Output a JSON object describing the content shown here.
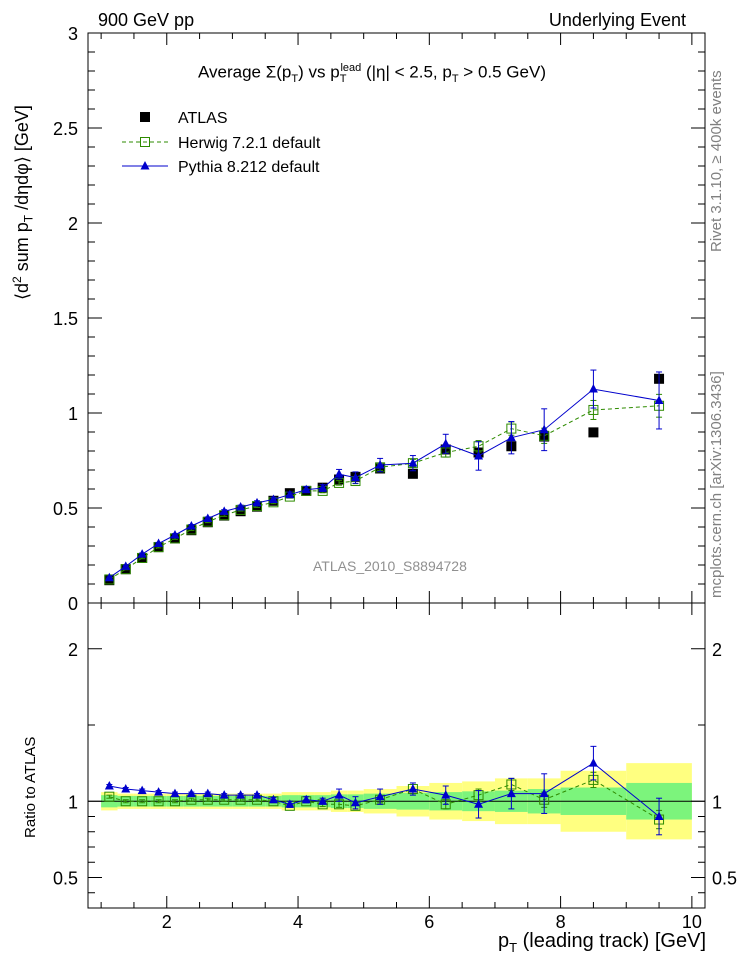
{
  "header": {
    "left": "900 GeV pp",
    "right": "Underlying Event"
  },
  "side_text": {
    "rivet": "Rivet 3.1.10, ≥ 400k events",
    "mcplots": "mcplots.cern.ch [arXiv:1306.3436]"
  },
  "watermark": "ATLAS_2010_S8894728",
  "colors": {
    "atlas": "#000000",
    "herwig": "#2e8b00",
    "pythia": "#0000cc",
    "band_inner": "#7cf47c",
    "band_outer": "#ffff80"
  },
  "chart_data": [
    {
      "type": "scatter",
      "panel": "main",
      "title": "Average Σ(pT) vs pT^lead (|η| < 2.5, pT > 0.5 GeV)",
      "title_parts": {
        "average": "Average",
        "sigma": "Σ(p",
        "t": "T",
        "close": ")",
        "vs": "vs p",
        "lead": "lead",
        "cuts_a": "(|η| < 2.5, p",
        "cuts_b": "> 0.5 GeV)"
      },
      "ylabel": "⟨d² sum pT /dηdφ⟩ [GeV]",
      "ylabel_parts": {
        "a": "⟨d",
        "sq": "2",
        "b": " sum p",
        "t": "T",
        "c": " /dηdφ⟩ [GeV]"
      },
      "xlim": [
        0.8,
        10.2
      ],
      "ylim": [
        0,
        3
      ],
      "yticks": [
        0,
        0.5,
        1,
        1.5,
        2,
        2.5,
        3
      ],
      "ytick_labels": [
        "0",
        "0.5",
        "1",
        "1.5",
        "2",
        "2.5",
        "3"
      ],
      "legend": {
        "position": "top-left",
        "entries": [
          "ATLAS",
          "Herwig 7.2.1 default",
          "Pythia 8.212 default"
        ]
      },
      "x": [
        1.125,
        1.375,
        1.625,
        1.875,
        2.125,
        2.375,
        2.625,
        2.875,
        3.125,
        3.375,
        3.625,
        3.875,
        4.125,
        4.375,
        4.625,
        4.875,
        5.25,
        5.75,
        6.25,
        6.75,
        7.25,
        7.75,
        8.5,
        9.5
      ],
      "series": [
        {
          "name": "ATLAS",
          "values": [
            0.12,
            0.178,
            0.237,
            0.294,
            0.34,
            0.383,
            0.425,
            0.46,
            0.483,
            0.507,
            0.538,
            0.578,
            0.59,
            0.607,
            0.65,
            0.664,
            0.708,
            0.68,
            0.808,
            0.792,
            0.825,
            0.876,
            0.898,
            1.18
          ]
        },
        {
          "name": "Herwig 7.2.1 default",
          "values": [
            0.124,
            0.178,
            0.237,
            0.294,
            0.34,
            0.387,
            0.428,
            0.462,
            0.49,
            0.51,
            0.53,
            0.56,
            0.59,
            0.59,
            0.632,
            0.642,
            0.714,
            0.736,
            0.792,
            0.825,
            0.918,
            0.88,
            1.016,
            1.038
          ],
          "errors": [
            0.003,
            0.003,
            0.004,
            0.004,
            0.005,
            0.005,
            0.005,
            0.006,
            0.006,
            0.007,
            0.007,
            0.008,
            0.009,
            0.01,
            0.012,
            0.014,
            0.016,
            0.02,
            0.024,
            0.03,
            0.035,
            0.04,
            0.05,
            0.06
          ]
        },
        {
          "name": "Pythia 8.212 default",
          "values": [
            0.133,
            0.193,
            0.257,
            0.313,
            0.358,
            0.405,
            0.445,
            0.482,
            0.505,
            0.527,
            0.545,
            0.57,
            0.597,
            0.605,
            0.678,
            0.66,
            0.726,
            0.736,
            0.838,
            0.774,
            0.87,
            0.912,
            1.126,
            1.066
          ],
          "errors": [
            0.004,
            0.005,
            0.006,
            0.006,
            0.007,
            0.008,
            0.008,
            0.009,
            0.01,
            0.011,
            0.012,
            0.014,
            0.016,
            0.018,
            0.025,
            0.03,
            0.035,
            0.04,
            0.05,
            0.075,
            0.085,
            0.11,
            0.1,
            0.15
          ]
        }
      ]
    },
    {
      "type": "scatter",
      "panel": "ratio",
      "ylabel": "Ratio to ATLAS",
      "xlabel": "pT (leading track) [GeV]",
      "xlabel_parts": {
        "a": "p",
        "t": "T",
        "b": " (leading track) [GeV]"
      },
      "xlim": [
        0.8,
        10.2
      ],
      "ylim": [
        0.3,
        2.3
      ],
      "xticks": [
        2,
        4,
        6,
        8,
        10
      ],
      "xtick_labels": [
        "2",
        "4",
        "6",
        "8",
        "10"
      ],
      "yticks": [
        0.5,
        1,
        2
      ],
      "ytick_labels": [
        "0.5",
        "1",
        "2"
      ],
      "x": [
        1.125,
        1.375,
        1.625,
        1.875,
        2.125,
        2.375,
        2.625,
        2.875,
        3.125,
        3.375,
        3.625,
        3.875,
        4.125,
        4.375,
        4.625,
        4.875,
        5.25,
        5.75,
        6.25,
        6.75,
        7.25,
        7.75,
        8.5,
        9.5
      ],
      "bins": [
        1.0,
        1.25,
        1.5,
        1.75,
        2.0,
        2.25,
        2.5,
        2.75,
        3.0,
        3.25,
        3.5,
        3.75,
        4.0,
        4.25,
        4.5,
        4.75,
        5.0,
        5.5,
        6.0,
        6.5,
        7.0,
        7.5,
        8.0,
        9.0,
        10.0
      ],
      "band_inner": [
        0.04,
        0.035,
        0.035,
        0.035,
        0.035,
        0.035,
        0.035,
        0.035,
        0.035,
        0.035,
        0.035,
        0.04,
        0.04,
        0.04,
        0.045,
        0.045,
        0.05,
        0.055,
        0.06,
        0.065,
        0.07,
        0.08,
        0.09,
        0.12
      ],
      "band_outer": [
        0.06,
        0.05,
        0.05,
        0.05,
        0.05,
        0.05,
        0.05,
        0.05,
        0.05,
        0.05,
        0.05,
        0.06,
        0.06,
        0.06,
        0.07,
        0.07,
        0.08,
        0.1,
        0.12,
        0.13,
        0.15,
        0.15,
        0.2,
        0.25
      ],
      "series": [
        {
          "name": "Herwig 7.2.1 default",
          "values": [
            1.03,
            1.0,
            1.0,
            1.0,
            1.0,
            1.01,
            1.01,
            1.01,
            1.01,
            1.01,
            1.0,
            0.97,
            1.0,
            0.98,
            0.98,
            0.97,
            1.01,
            1.08,
            0.98,
            1.04,
            1.11,
            1.01,
            1.14,
            0.88
          ],
          "errors": [
            0.01,
            0.01,
            0.01,
            0.01,
            0.01,
            0.01,
            0.01,
            0.01,
            0.01,
            0.01,
            0.01,
            0.01,
            0.01,
            0.015,
            0.02,
            0.02,
            0.02,
            0.03,
            0.03,
            0.04,
            0.04,
            0.05,
            0.05,
            0.06
          ]
        },
        {
          "name": "Pythia 8.212 default",
          "values": [
            1.1,
            1.08,
            1.07,
            1.06,
            1.05,
            1.05,
            1.05,
            1.04,
            1.04,
            1.04,
            1.01,
            0.98,
            1.01,
            1.0,
            1.04,
            0.99,
            1.03,
            1.08,
            1.04,
            0.98,
            1.05,
            1.05,
            1.25,
            0.9
          ],
          "errors": [
            0.01,
            0.01,
            0.01,
            0.01,
            0.01,
            0.01,
            0.01,
            0.01,
            0.01,
            0.01,
            0.015,
            0.02,
            0.02,
            0.02,
            0.04,
            0.04,
            0.05,
            0.04,
            0.06,
            0.09,
            0.1,
            0.13,
            0.11,
            0.12
          ]
        }
      ]
    }
  ]
}
